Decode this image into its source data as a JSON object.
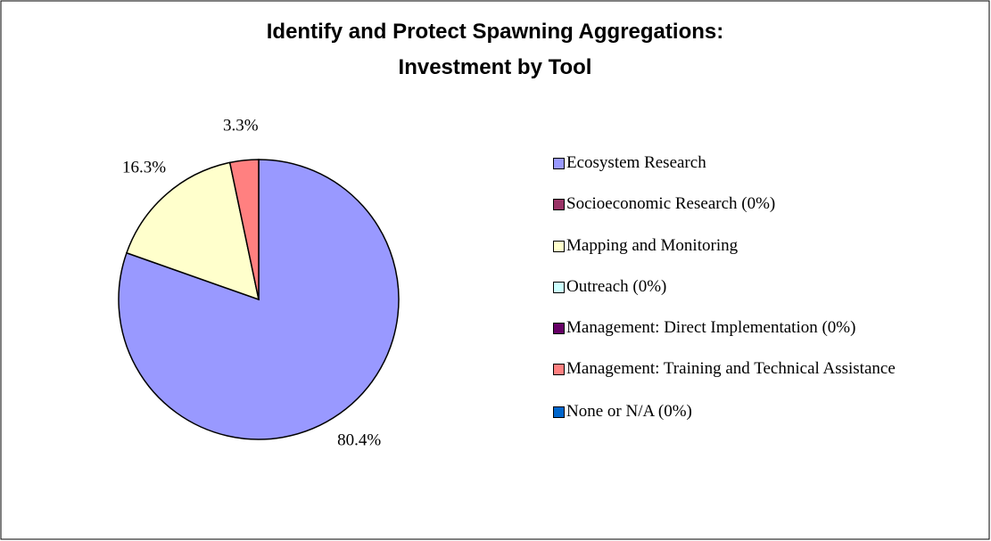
{
  "chart_data": {
    "type": "pie",
    "title": [
      "Identify and Protect Spawning Aggregations:",
      "Investment by Tool"
    ],
    "categories": [
      "Ecosystem Research",
      "Socioeconomic Research (0%)",
      "Mapping and Monitoring",
      "Outreach (0%)",
      "Management: Direct Implementation (0%)",
      "Management: Training and Technical Assistance",
      "None or N/A (0%)"
    ],
    "values": [
      80.4,
      0,
      16.3,
      0,
      0,
      3.3,
      0
    ],
    "value_labels": [
      "80.4%",
      null,
      "16.3%",
      null,
      null,
      "3.3%",
      null
    ],
    "colors": [
      "#9999ff",
      "#993366",
      "#ffffcc",
      "#ccffff",
      "#660066",
      "#ff8080",
      "#0066cc"
    ],
    "legend": "right"
  }
}
